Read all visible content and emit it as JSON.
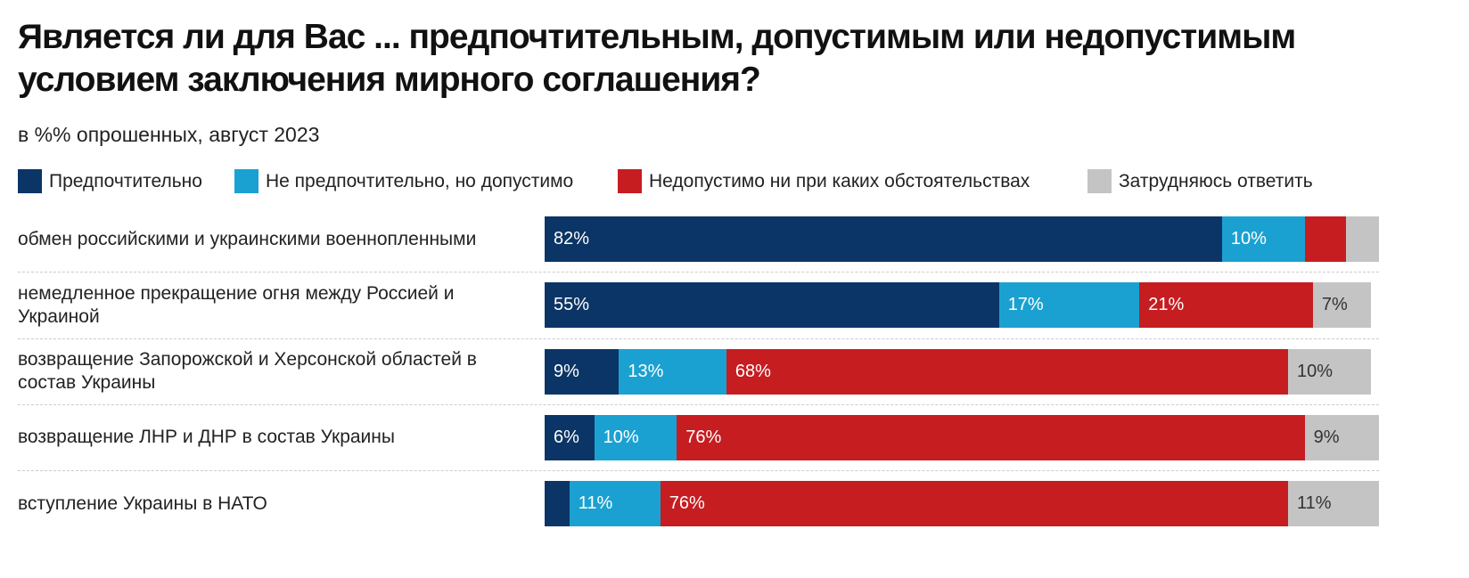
{
  "chart_data": {
    "type": "stacked-bar-horizontal",
    "title": "Является ли для Вас ... предпочтительным, допустимым или недопустимым условием заключения мирного соглашения?",
    "subtitle": "в %% опрошенных, август 2023",
    "categories": [
      "обмен российскими и украинскими военнопленными",
      "немедленное прекращение огня между Россией и Украиной",
      "возвращение Запорожской и Херсонской областей в состав Украины",
      "возвращение ЛНР и ДНР в состав Украины",
      "вступление Украины в НАТО"
    ],
    "series": [
      {
        "name": "Предпочтительно",
        "color": "#0b3566",
        "label_color": "#ffffff",
        "values": [
          82,
          55,
          9,
          6,
          3
        ],
        "value_labels": [
          "82%",
          "55%",
          "9%",
          "6%",
          null
        ]
      },
      {
        "name": "Не предпочтительно, но допустимо",
        "color": "#1ba1d1",
        "label_color": "#ffffff",
        "values": [
          10,
          17,
          13,
          10,
          11
        ],
        "value_labels": [
          "10%",
          "17%",
          "13%",
          "10%",
          "11%"
        ]
      },
      {
        "name": "Недопустимо ни при каких обстоятельствах",
        "color": "#c61d21",
        "label_color": "#ffffff",
        "values": [
          5,
          21,
          68,
          76,
          76
        ],
        "value_labels": [
          null,
          "21%",
          "68%",
          "76%",
          "76%"
        ]
      },
      {
        "name": "Затрудняюсь ответить",
        "color": "#c4c4c4",
        "label_color": "#333333",
        "values": [
          4,
          7,
          10,
          9,
          11
        ],
        "value_labels": [
          null,
          "7%",
          "10%",
          "9%",
          "11%"
        ]
      }
    ],
    "xlim": [
      0,
      101
    ]
  }
}
